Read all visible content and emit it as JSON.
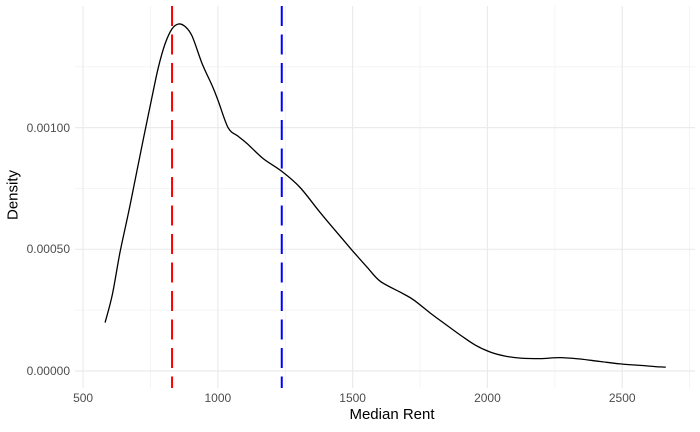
{
  "chart_data": {
    "type": "line",
    "title": "",
    "xlabel": "Median Rent",
    "ylabel": "Density",
    "xlim": [
      470,
      2770
    ],
    "ylim": [
      -7e-05,
      0.0015
    ],
    "grid": true,
    "legend": "none",
    "x_ticks": {
      "values": [
        500,
        1000,
        1500,
        2000,
        2500
      ],
      "labels": [
        "500",
        "1000",
        "1500",
        "2000",
        "2500"
      ]
    },
    "y_ticks": {
      "values": [
        0,
        0.0005,
        0.001
      ],
      "labels": [
        "0.00000",
        "0.00050",
        "0.00100"
      ]
    },
    "x_minor": [
      750,
      1250,
      1750,
      2250,
      2750
    ],
    "y_minor": [
      0.00025,
      0.00075,
      0.00125
    ],
    "series": [
      {
        "name": "density-curve",
        "color": "#000000",
        "points": [
          [
            582,
            0.000201
          ],
          [
            608,
            0.000311
          ],
          [
            637,
            0.000488
          ],
          [
            674,
            0.00068
          ],
          [
            711,
            0.000885
          ],
          [
            749,
            0.00109
          ],
          [
            778,
            0.001242
          ],
          [
            804,
            0.001344
          ],
          [
            830,
            0.001406
          ],
          [
            854,
            0.001426
          ],
          [
            878,
            0.001416
          ],
          [
            904,
            0.001377
          ],
          [
            942,
            0.001262
          ],
          [
            979,
            0.001172
          ],
          [
            1001,
            0.001111
          ],
          [
            1038,
            0.001
          ],
          [
            1075,
            0.000965
          ],
          [
            1109,
            0.000934
          ],
          [
            1168,
            0.000873
          ],
          [
            1238,
            0.00082
          ],
          [
            1305,
            0.000754
          ],
          [
            1379,
            0.000652
          ],
          [
            1454,
            0.000553
          ],
          [
            1498,
            0.000496
          ],
          [
            1554,
            0.000426
          ],
          [
            1602,
            0.000369
          ],
          [
            1676,
            0.000324
          ],
          [
            1725,
            0.000293
          ],
          [
            1788,
            0.000238
          ],
          [
            1843,
            0.000193
          ],
          [
            1899,
            0.000148
          ],
          [
            1954,
            0.000107
          ],
          [
            2010,
            7.8e-05
          ],
          [
            2066,
            6.1e-05
          ],
          [
            2122,
            5.3e-05
          ],
          [
            2196,
            5.1e-05
          ],
          [
            2270,
            5.5e-05
          ],
          [
            2344,
            4.9e-05
          ],
          [
            2418,
            3.9e-05
          ],
          [
            2493,
            2.9e-05
          ],
          [
            2567,
            2.3e-05
          ],
          [
            2622,
            1.8e-05
          ],
          [
            2660,
            1.6e-05
          ]
        ]
      }
    ],
    "vlines": [
      {
        "name": "red-dashed-vline",
        "x": 830,
        "color": "#FF0000",
        "style": "dashed"
      },
      {
        "name": "blue-dashed-vline",
        "x": 1237,
        "color": "#0000FF",
        "style": "dashed"
      }
    ],
    "colors": {
      "background": "#FFFFFF",
      "grid_major": "#EBEBEB",
      "grid_minor": "#F2F2F2",
      "tick_text": "#4D4D4D",
      "axis_title_text": "#000000",
      "curve": "#000000"
    }
  }
}
